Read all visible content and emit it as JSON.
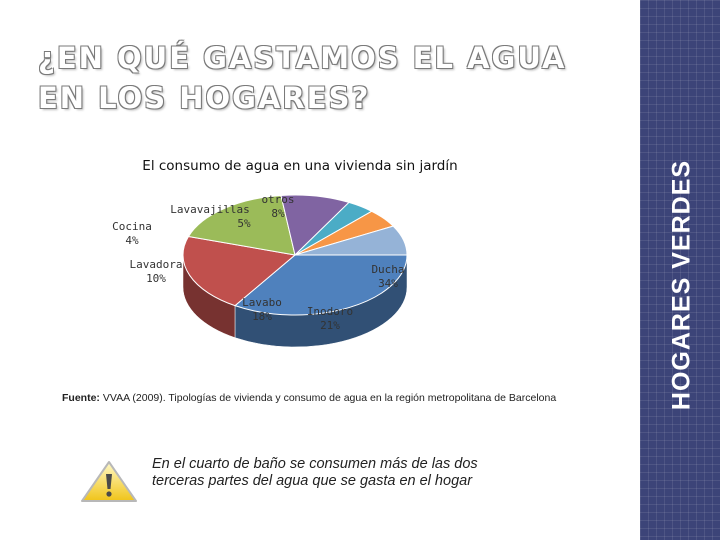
{
  "slide": {
    "title": "¿EN QUÉ GASTAMOS EL AGUA EN LOS HOGARES?",
    "sidebar_label": "HOGARES VERDES",
    "source_label": "Fuente:",
    "source_text": "VVAA (2009). Tipologías de vivienda y consumo de agua en la región metropolitana de Barcelona",
    "note": "En el cuarto de baño se consumen más de las dos terceras partes del agua que se gasta en el hogar",
    "warning_icon": "warning-triangle-icon"
  },
  "chart_data": {
    "type": "pie",
    "title": "El consumo de agua en una vivienda sin jardín",
    "slices": [
      {
        "label": "Ducha",
        "value": 34,
        "display": "34%",
        "color": "#4f81bd"
      },
      {
        "label": "Inodoro",
        "value": 21,
        "display": "21%",
        "color": "#c0504d"
      },
      {
        "label": "Lavabo",
        "value": 18,
        "display": "18%",
        "color": "#9bbb59"
      },
      {
        "label": "Lavadora",
        "value": 10,
        "display": "10%",
        "color": "#8064a2"
      },
      {
        "label": "Cocina",
        "value": 4,
        "display": "4%",
        "color": "#4bacc6"
      },
      {
        "label": "Lavavajillas",
        "value": 5,
        "display": "5%",
        "color": "#f79646"
      },
      {
        "label": "otros",
        "value": 8,
        "display": "8%",
        "color": "#95b3d7"
      }
    ]
  }
}
